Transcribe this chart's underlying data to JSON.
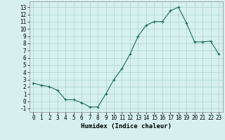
{
  "xlabel": "Humidex (Indice chaleur)",
  "x": [
    0,
    1,
    2,
    3,
    4,
    5,
    6,
    7,
    8,
    9,
    10,
    11,
    12,
    13,
    14,
    15,
    16,
    17,
    18,
    19,
    20,
    21,
    22,
    23
  ],
  "y": [
    2.5,
    2.2,
    2.0,
    1.5,
    0.2,
    0.2,
    -0.2,
    -0.8,
    -0.8,
    1.0,
    3.0,
    4.5,
    6.5,
    9.0,
    10.5,
    11.0,
    11.0,
    12.5,
    13.0,
    10.8,
    8.2,
    8.2,
    8.3,
    6.5
  ],
  "line_color": "#1a6b5a",
  "marker": "+",
  "marker_size": 3,
  "bg_color": "#d6f0ef",
  "grid_color": "#aad4d0",
  "ylim": [
    -1.5,
    13.8
  ],
  "yticks": [
    -1,
    0,
    1,
    2,
    3,
    4,
    5,
    6,
    7,
    8,
    9,
    10,
    11,
    12,
    13
  ],
  "xticks": [
    0,
    1,
    2,
    3,
    4,
    5,
    6,
    7,
    8,
    9,
    10,
    11,
    12,
    13,
    14,
    15,
    16,
    17,
    18,
    19,
    20,
    21,
    22,
    23
  ],
  "tick_fontsize": 5.5,
  "xlabel_fontsize": 6.5,
  "linewidth": 0.8,
  "markeredgewidth": 0.8
}
